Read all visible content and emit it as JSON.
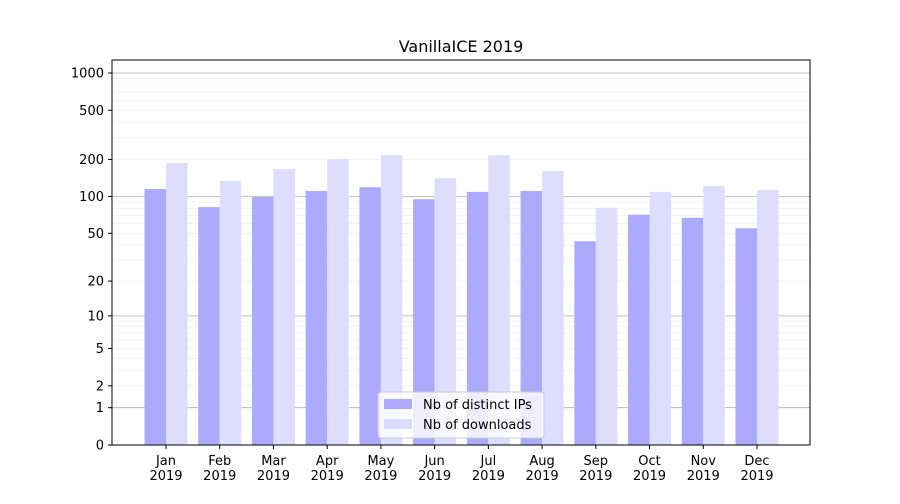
{
  "chart_data": {
    "type": "bar",
    "title": "VanillaICE 2019",
    "xlabel": "",
    "ylabel": "",
    "yscale": "log(1+y)",
    "ylim": [
      0,
      1200
    ],
    "yticks": [
      0,
      1,
      2,
      5,
      10,
      20,
      50,
      100,
      200,
      500,
      1000
    ],
    "grid": true,
    "legend_position": "bottom-center",
    "categories": [
      "Jan\n2019",
      "Feb\n2019",
      "Mar\n2019",
      "Apr\n2019",
      "May\n2019",
      "Jun\n2019",
      "Jul\n2019",
      "Aug\n2019",
      "Sep\n2019",
      "Oct\n2019",
      "Nov\n2019",
      "Dec\n2019"
    ],
    "series": [
      {
        "name": "Nb of distinct IPs",
        "color": "#aaaaff",
        "values": [
          115,
          82,
          99,
          111,
          119,
          95,
          109,
          111,
          43,
          71,
          67,
          55
        ]
      },
      {
        "name": "Nb of downloads",
        "color": "#ddddff",
        "values": [
          187,
          134,
          167,
          201,
          217,
          141,
          217,
          161,
          81,
          109,
          122,
          113
        ]
      }
    ]
  }
}
